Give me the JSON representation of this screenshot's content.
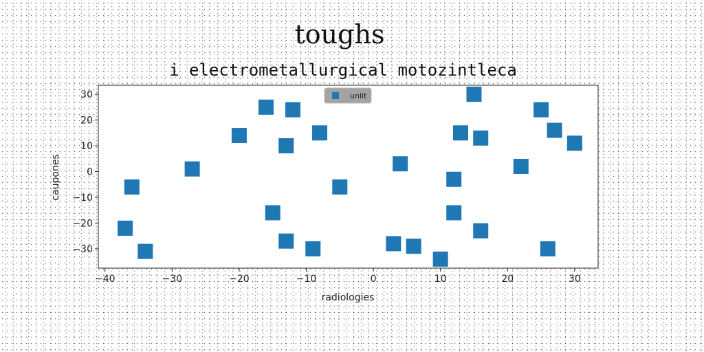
{
  "chart_data": {
    "type": "scatter",
    "title": "toughs",
    "subtitle": "i electrometallurgical motozintleca",
    "xlabel": "radiologies",
    "ylabel": "caupones",
    "xlim": [
      -41,
      33.5
    ],
    "ylim": [
      -37.5,
      33.5
    ],
    "xticks": [
      -40,
      -30,
      -20,
      -10,
      0,
      10,
      20,
      30
    ],
    "yticks": [
      -30,
      -20,
      -10,
      0,
      10,
      20,
      30
    ],
    "grid": false,
    "legend": {
      "position": "top-center",
      "background": "#999999"
    },
    "series": [
      {
        "name": "unlit",
        "color": "#1f77b4",
        "marker": "square",
        "points": [
          [
            -37,
            -22
          ],
          [
            -36,
            -6
          ],
          [
            -34,
            -31
          ],
          [
            -27,
            1
          ],
          [
            -20,
            14
          ],
          [
            -16,
            25
          ],
          [
            -15,
            -16
          ],
          [
            -13,
            10
          ],
          [
            -13,
            -27
          ],
          [
            -12,
            24
          ],
          [
            -9,
            -30
          ],
          [
            -8,
            15
          ],
          [
            -5,
            -6
          ],
          [
            3,
            -28
          ],
          [
            4,
            3
          ],
          [
            6,
            -29
          ],
          [
            10,
            -34
          ],
          [
            12,
            -3
          ],
          [
            12,
            -16
          ],
          [
            13,
            15
          ],
          [
            15,
            30
          ],
          [
            16,
            13
          ],
          [
            16,
            -23
          ],
          [
            22,
            2
          ],
          [
            25,
            24
          ],
          [
            26,
            -30
          ],
          [
            27,
            16
          ],
          [
            30,
            11
          ]
        ]
      }
    ]
  }
}
